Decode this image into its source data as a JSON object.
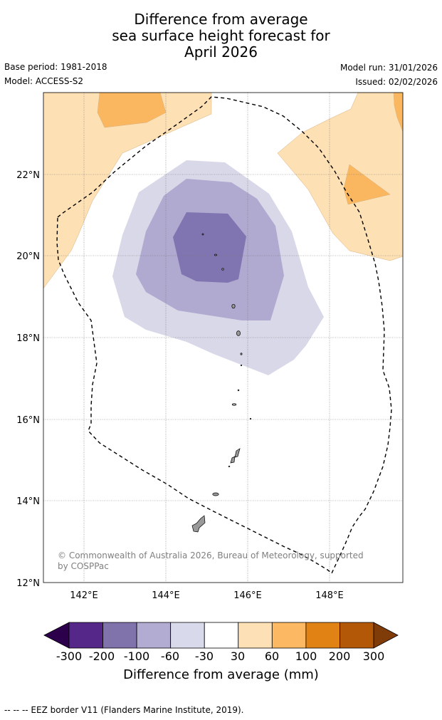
{
  "title": {
    "line1": "Difference from average",
    "line2": "sea surface height forecast for",
    "line3": "April 2026"
  },
  "meta": {
    "base_period": "Base period: 1981-2018",
    "model": "Model: ACCESS-S2",
    "model_run": "Model run: 31/01/2026",
    "issued": "Issued: 02/02/2026"
  },
  "map": {
    "lat_labels": [
      "22°N",
      "20°N",
      "18°N",
      "16°N",
      "14°N",
      "12°N"
    ],
    "lon_labels": [
      "142°E",
      "144°E",
      "146°E",
      "148°E"
    ],
    "copyright_line1": "© Commonwealth of Australia 2026, Bureau of Meteorology, supported",
    "copyright_line2": "by COSPPac",
    "colors": {
      "anom_neg_60_to_30": "#d8d8e8",
      "anom_neg_100_to_60": "#b0a9d0",
      "anom_neg_200_to_100": "#8075b0",
      "anom_pos_30_to_60": "#fde0b4",
      "anom_pos_60_to_100": "#fbb660",
      "land": "#999999"
    }
  },
  "colorbar": {
    "labels": [
      "-300",
      "-200",
      "-100",
      "-60",
      "-30",
      "30",
      "60",
      "100",
      "200",
      "300"
    ],
    "colors": [
      "#542788",
      "#8073ac",
      "#b2abd2",
      "#d8daeb",
      "#ffffff",
      "#fee0b6",
      "#fdb863",
      "#e08214",
      "#b35806"
    ],
    "low_extend_color": "#2d004b",
    "high_extend_color": "#7f3b08",
    "title": "Difference from average (mm)"
  },
  "footnote": "--  --  -- EEZ border V11 (Flanders Marine Institute, 2019)."
}
